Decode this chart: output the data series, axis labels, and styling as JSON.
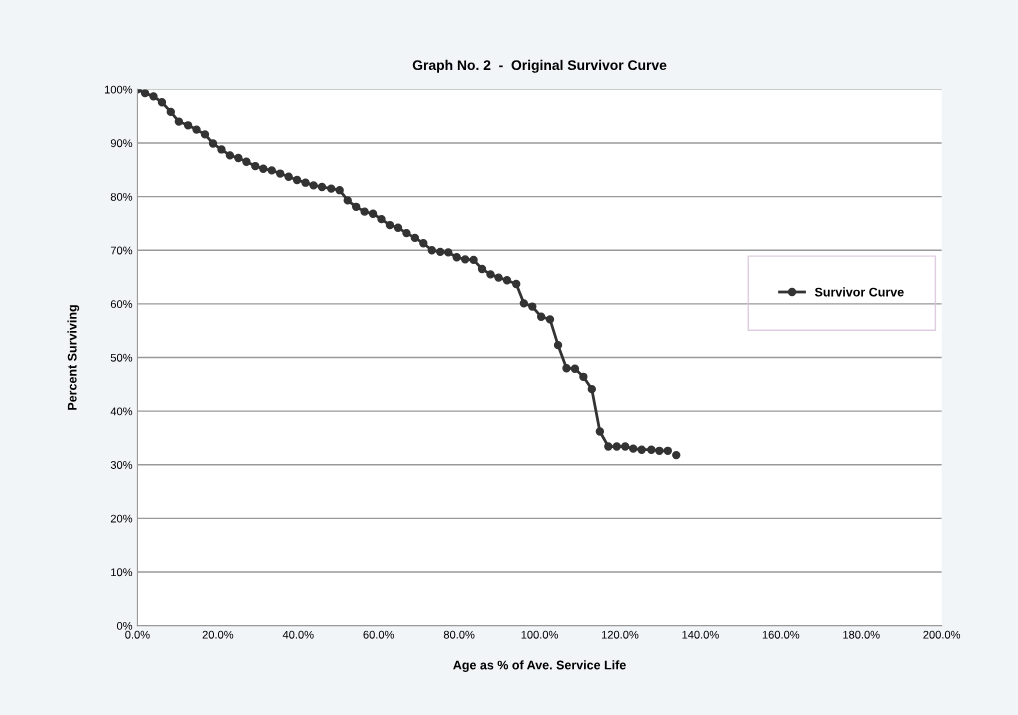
{
  "chart_data": {
    "type": "line",
    "title": "Graph No. 2  -  Original Survivor Curve",
    "xlabel": "Age as % of Ave. Service Life",
    "ylabel": "Percent Surviving",
    "series": [
      {
        "name": "Survivor Curve",
        "color": "#333333",
        "x": [
          0,
          1.9,
          4.0,
          6.1,
          8.3,
          10.3,
          12.6,
          14.7,
          16.8,
          18.8,
          20.9,
          23.0,
          25.1,
          27.1,
          29.3,
          31.3,
          33.4,
          35.5,
          37.6,
          39.7,
          41.8,
          43.8,
          45.9,
          48.2,
          50.3,
          52.3,
          54.4,
          56.5,
          58.6,
          60.7,
          62.8,
          64.8,
          66.9,
          69.0,
          71.1,
          73.2,
          75.3,
          77.3,
          79.4,
          81.5,
          83.6,
          85.7,
          87.8,
          89.8,
          91.9,
          94.2,
          96.1,
          98.2,
          100.4,
          102.6,
          104.6,
          106.7,
          108.8,
          110.9,
          113.0,
          115.0,
          117.1,
          119.2,
          121.3,
          123.3,
          125.4,
          127.8,
          129.8,
          131.9,
          133.0,
          134.0
        ],
        "values": [
          100,
          99.3,
          98.7,
          97.6,
          95.8,
          94.0,
          93.3,
          92.5,
          91.6,
          89.9,
          88.8,
          87.7,
          87.2,
          86.5,
          85.7,
          85.2,
          84.9,
          84.3,
          83.7,
          83.1,
          82.6,
          82.1,
          81.8,
          81.5,
          81.2,
          79.3,
          78.1,
          77.2,
          76.8,
          75.8,
          74.7,
          74.2,
          73.2,
          72.3,
          71.3,
          70.0,
          69.7,
          69.6,
          68.7,
          68.3,
          68.2,
          66.5,
          65.5,
          64.9,
          64.4,
          63.7,
          60.1,
          59.5,
          57.6,
          57.1,
          52.3,
          48.0,
          47.9,
          46.4,
          44.1,
          36.2,
          33.4,
          33.4,
          33.4,
          33.0,
          32.8,
          32.8,
          32.6,
          32.6,
          null,
          31.8
        ]
      }
    ],
    "xlim": [
      0,
      200
    ],
    "xticks": [
      {
        "value": 0,
        "label": "0.0%"
      },
      {
        "value": 20,
        "label": "20.0%"
      },
      {
        "value": 40,
        "label": "40.0%"
      },
      {
        "value": 60,
        "label": "60.0%"
      },
      {
        "value": 80,
        "label": "80.0%"
      },
      {
        "value": 100,
        "label": "100.0%"
      },
      {
        "value": 120,
        "label": "120.0%"
      },
      {
        "value": 140,
        "label": "140.0%"
      },
      {
        "value": 160,
        "label": "160.0%"
      },
      {
        "value": 180,
        "label": "180.0%"
      },
      {
        "value": 200,
        "label": "200.0%"
      }
    ],
    "ylim": [
      0,
      100
    ],
    "yticks": [
      {
        "value": 0,
        "label": "0%"
      },
      {
        "value": 10,
        "label": "10%"
      },
      {
        "value": 20,
        "label": "20%"
      },
      {
        "value": 30,
        "label": "30%"
      },
      {
        "value": 40,
        "label": "40%"
      },
      {
        "value": 50,
        "label": "50%"
      },
      {
        "value": 60,
        "label": "60%"
      },
      {
        "value": 70,
        "label": "70%"
      },
      {
        "value": 80,
        "label": "80%"
      },
      {
        "value": 90,
        "label": "90%"
      },
      {
        "value": 100,
        "label": "100%"
      }
    ],
    "grid": "y",
    "legend": "right",
    "marker": "circle",
    "line_style": "solid"
  }
}
